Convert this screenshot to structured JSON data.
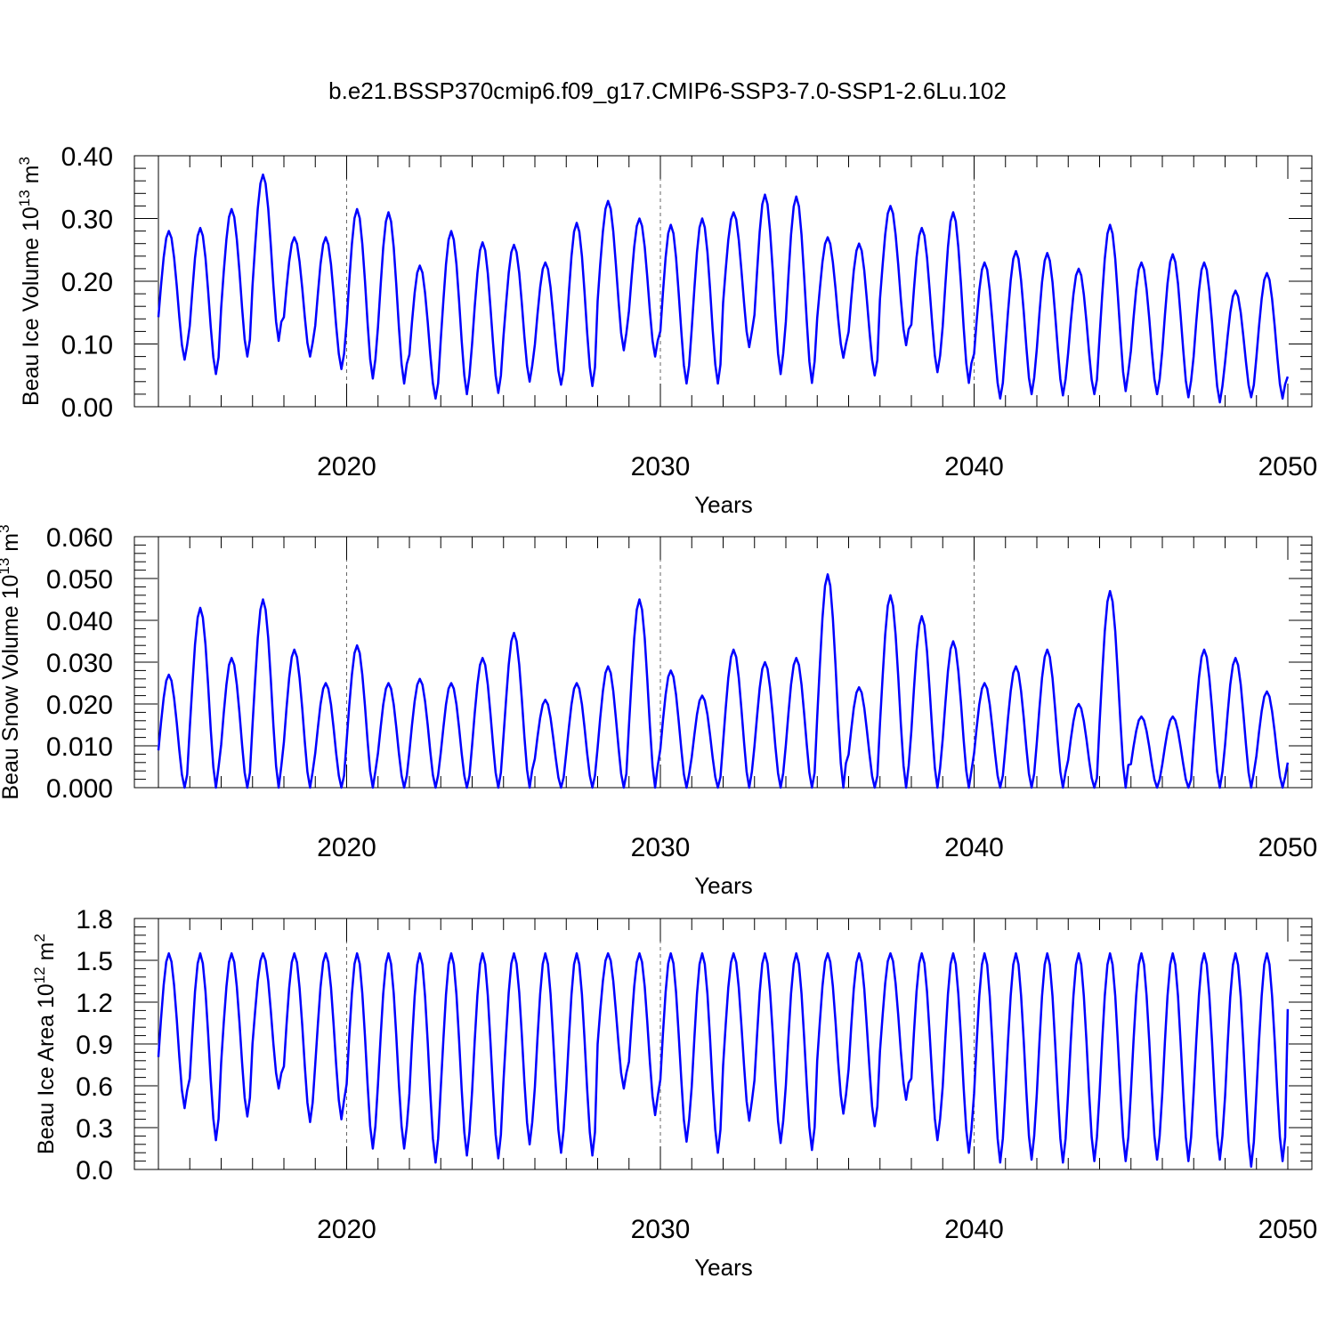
{
  "title": "b.e21.BSSP370cmip6.f09_g17.CMIP6-SSP3-7.0-SSP1-2.6Lu.102",
  "colors": {
    "series": "#0000ff",
    "axis": "#000000",
    "grid": "#666666"
  },
  "chart_data": [
    {
      "type": "line",
      "id": "ice-volume",
      "title": "",
      "ylabel_base": "Beau Ice Volume 10",
      "ylabel_exp": "13",
      "ylabel_unit": "m",
      "ylabel_unit_exp": "3",
      "xlabel": "Years",
      "xlim": [
        2014.0,
        2050.0
      ],
      "ylim": [
        0.0,
        0.4
      ],
      "yticks": [
        "0.00",
        "0.10",
        "0.20",
        "0.30",
        "0.40"
      ],
      "ytick_values": [
        0.0,
        0.1,
        0.2,
        0.3,
        0.4
      ],
      "xticks": [
        "2020",
        "2030",
        "2040",
        "2050"
      ],
      "xtick_values": [
        2020,
        2030,
        2040,
        2050
      ],
      "grid_x_dashed": [
        2020,
        2030,
        2040
      ],
      "series": [
        {
          "name": "Beau Ice Volume",
          "start": 2014.0,
          "step": 0.08333,
          "annual_max": [
            0.28,
            0.285,
            0.315,
            0.37,
            0.27,
            0.27,
            0.315,
            0.31,
            0.225,
            0.28,
            0.262,
            0.258,
            0.23,
            0.293,
            0.328,
            0.3,
            0.29,
            0.3,
            0.31,
            0.338,
            0.335,
            0.27,
            0.26,
            0.32,
            0.285,
            0.31,
            0.23,
            0.248,
            0.245,
            0.22,
            0.29,
            0.23,
            0.243,
            0.23,
            0.185,
            0.213
          ],
          "annual_min": [
            0.075,
            0.052,
            0.08,
            0.105,
            0.08,
            0.06,
            0.045,
            0.037,
            0.013,
            0.02,
            0.022,
            0.04,
            0.035,
            0.033,
            0.09,
            0.08,
            0.037,
            0.037,
            0.095,
            0.052,
            0.038,
            0.078,
            0.05,
            0.098,
            0.055,
            0.038,
            0.013,
            0.02,
            0.018,
            0.02,
            0.025,
            0.02,
            0.015,
            0.007,
            0.015,
            0.013
          ],
          "end_value": 0.048
        }
      ]
    },
    {
      "type": "line",
      "id": "snow-volume",
      "title": "",
      "ylabel_base": "Beau Snow Volume 10",
      "ylabel_exp": "13",
      "ylabel_unit": "m",
      "ylabel_unit_exp": "3",
      "xlabel": "Years",
      "xlim": [
        2014.0,
        2050.0
      ],
      "ylim": [
        0.0,
        0.06
      ],
      "yticks": [
        "0.000",
        "0.010",
        "0.020",
        "0.030",
        "0.040",
        "0.050",
        "0.060"
      ],
      "ytick_values": [
        0.0,
        0.01,
        0.02,
        0.03,
        0.04,
        0.05,
        0.06
      ],
      "xticks": [
        "2020",
        "2030",
        "2040",
        "2050"
      ],
      "xtick_values": [
        2020,
        2030,
        2040,
        2050
      ],
      "grid_x_dashed": [
        2020,
        2030,
        2040
      ],
      "series": [
        {
          "name": "Beau Snow Volume",
          "start": 2014.0,
          "step": 0.08333,
          "annual_max": [
            0.027,
            0.043,
            0.031,
            0.045,
            0.033,
            0.025,
            0.034,
            0.025,
            0.026,
            0.025,
            0.031,
            0.037,
            0.021,
            0.025,
            0.029,
            0.045,
            0.028,
            0.022,
            0.033,
            0.03,
            0.031,
            0.051,
            0.024,
            0.046,
            0.041,
            0.035,
            0.025,
            0.029,
            0.033,
            0.02,
            0.047,
            0.017,
            0.017,
            0.033,
            0.031,
            0.023
          ],
          "annual_min": [
            0.0
          ],
          "end_value": 0.006
        }
      ]
    },
    {
      "type": "line",
      "id": "ice-area",
      "title": "",
      "ylabel_base": "Beau Ice Area 10",
      "ylabel_exp": "12",
      "ylabel_unit": "m",
      "ylabel_unit_exp": "2",
      "xlabel": "Years",
      "xlim": [
        2014.0,
        2050.0
      ],
      "ylim": [
        0.0,
        1.8
      ],
      "yticks": [
        "0.0",
        "0.3",
        "0.6",
        "0.9",
        "1.2",
        "1.5",
        "1.8"
      ],
      "ytick_values": [
        0.0,
        0.3,
        0.6,
        0.9,
        1.2,
        1.5,
        1.8
      ],
      "xticks": [
        "2020",
        "2030",
        "2040",
        "2050"
      ],
      "xtick_values": [
        2020,
        2030,
        2040,
        2050
      ],
      "grid_x_dashed": [
        2020,
        2030,
        2040
      ],
      "series": [
        {
          "name": "Beau Ice Area",
          "start": 2014.0,
          "step": 0.08333,
          "annual_max": [
            1.55
          ],
          "annual_min": [
            0.44,
            0.21,
            0.38,
            0.58,
            0.34,
            0.36,
            0.15,
            0.15,
            0.05,
            0.1,
            0.08,
            0.18,
            0.12,
            0.1,
            0.58,
            0.39,
            0.2,
            0.12,
            0.35,
            0.19,
            0.14,
            0.4,
            0.31,
            0.5,
            0.21,
            0.12,
            0.05,
            0.07,
            0.05,
            0.06,
            0.06,
            0.07,
            0.06,
            0.07,
            0.02,
            0.06
          ],
          "end_value": 1.15
        }
      ]
    }
  ]
}
